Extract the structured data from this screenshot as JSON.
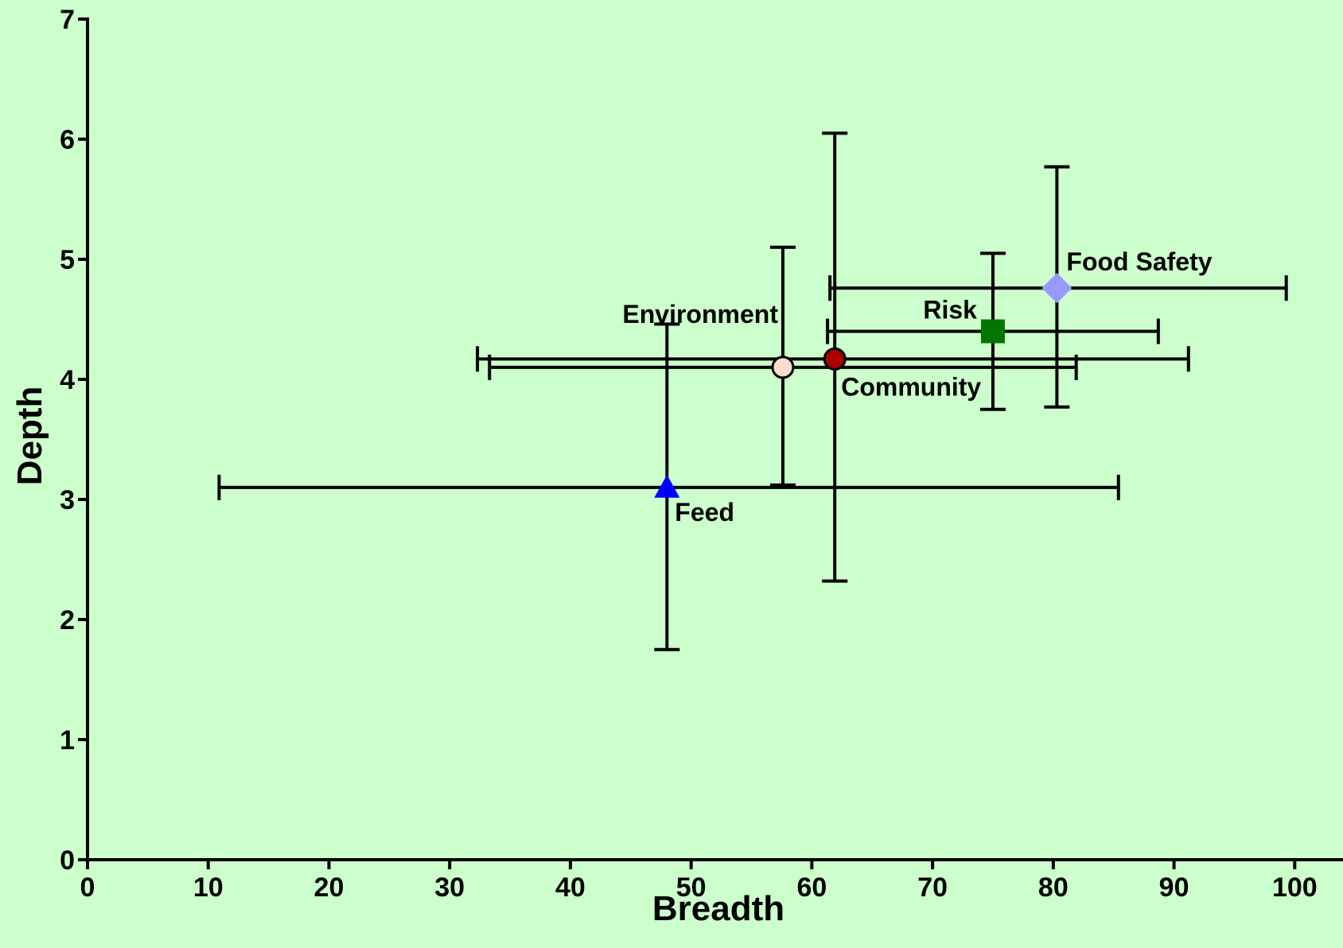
{
  "chart_data": {
    "type": "scatter",
    "title": "",
    "xlabel": "Breadth",
    "ylabel": "Depth",
    "xlim": [
      0,
      104
    ],
    "ylim": [
      0,
      7
    ],
    "xticks": [
      0,
      10,
      20,
      30,
      40,
      50,
      60,
      70,
      80,
      90,
      100
    ],
    "yticks": [
      0,
      1,
      2,
      3,
      4,
      5,
      6,
      7
    ],
    "grid": false,
    "legend": "none",
    "background": "#ccffcc",
    "points": [
      {
        "label": "Food Safety",
        "x": 80.3,
        "y": 4.76,
        "x_err": [
          61.5,
          99.3
        ],
        "y_err": [
          3.77,
          5.77
        ],
        "marker": "diamond",
        "color": "#9999ff"
      },
      {
        "label": "Risk",
        "x": 75.0,
        "y": 4.4,
        "x_err": [
          61.3,
          88.7
        ],
        "y_err": [
          3.75,
          5.05
        ],
        "marker": "square",
        "color": "#007700"
      },
      {
        "label": "Community",
        "x": 61.9,
        "y": 4.17,
        "x_err": [
          32.3,
          91.2
        ],
        "y_err": [
          2.32,
          6.05
        ],
        "marker": "circle",
        "color": "#aa0000"
      },
      {
        "label": "Environment",
        "x": 57.6,
        "y": 4.1,
        "x_err": [
          33.3,
          81.9
        ],
        "y_err": [
          3.12,
          5.1
        ],
        "marker": "circle",
        "color": "#ffddcc"
      },
      {
        "label": "Feed",
        "x": 48.0,
        "y": 3.1,
        "x_err": [
          10.9,
          85.4
        ],
        "y_err": [
          1.75,
          4.46
        ],
        "marker": "triangle",
        "color": "#0000ff"
      }
    ]
  }
}
